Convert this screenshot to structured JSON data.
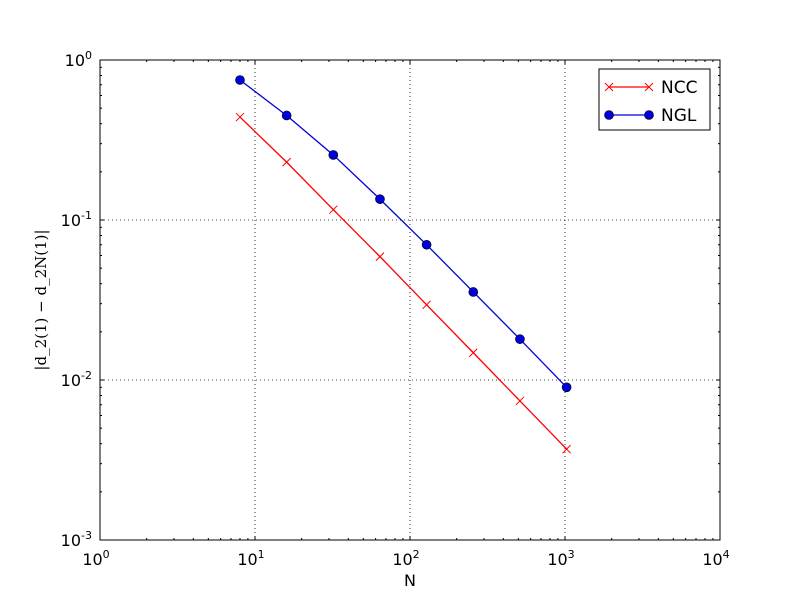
{
  "chart_data": {
    "type": "line",
    "x_scale": "log",
    "y_scale": "log",
    "xlabel": "N",
    "ylabel": "|d_2(1) − d_2N(1)|",
    "xlim": [
      1,
      10000
    ],
    "ylim": [
      0.001,
      1
    ],
    "x_ticks": [
      {
        "base": "10",
        "exp": "0",
        "value": 1
      },
      {
        "base": "10",
        "exp": "1",
        "value": 10
      },
      {
        "base": "10",
        "exp": "2",
        "value": 100
      },
      {
        "base": "10",
        "exp": "3",
        "value": 1000
      },
      {
        "base": "10",
        "exp": "4",
        "value": 10000
      }
    ],
    "y_ticks": [
      {
        "base": "10",
        "exp": "-3",
        "value": 0.001
      },
      {
        "base": "10",
        "exp": "-2",
        "value": 0.01
      },
      {
        "base": "10",
        "exp": "-1",
        "value": 0.1
      },
      {
        "base": "10",
        "exp": "0",
        "value": 1
      }
    ],
    "grid": true,
    "legend_position": "top-right",
    "series": [
      {
        "name": "NCC",
        "color": "#ff0000",
        "marker": "x",
        "x": [
          8,
          16,
          32,
          64,
          128,
          256,
          512,
          1024
        ],
        "y": [
          0.44,
          0.23,
          0.116,
          0.059,
          0.0295,
          0.0148,
          0.0074,
          0.0037
        ]
      },
      {
        "name": "NGL",
        "color": "#0000dd",
        "marker": "circle",
        "x": [
          8,
          16,
          32,
          64,
          128,
          256,
          512,
          1024
        ],
        "y": [
          0.75,
          0.45,
          0.255,
          0.135,
          0.07,
          0.0355,
          0.018,
          0.009
        ]
      }
    ]
  }
}
